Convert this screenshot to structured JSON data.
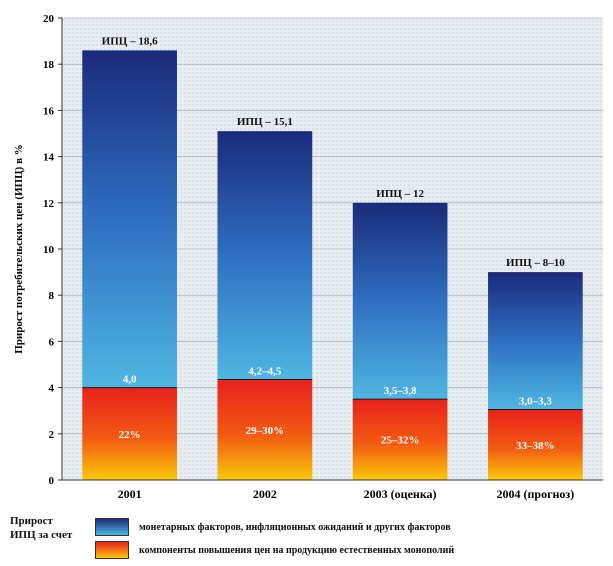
{
  "chart_data": {
    "type": "bar",
    "stacked": true,
    "ylabel": "Прирост потребительских цен (ИПЦ) в %",
    "ylim": [
      0,
      20
    ],
    "yticks": [
      0,
      2,
      4,
      6,
      8,
      10,
      12,
      14,
      16,
      18,
      20
    ],
    "categories": [
      "2001",
      "2002",
      "2003 (оценка)",
      "2004 (прогноз)"
    ],
    "series": [
      {
        "name": "компоненты повышения цен на продукцию естественных монополий",
        "values": [
          4.0,
          4.35,
          3.5,
          3.05
        ],
        "inner_labels": [
          "22%",
          "29–30%",
          "25–32%",
          "33–38%"
        ]
      },
      {
        "name": "монетарных факторов, инфляционных ожиданий и других факторов",
        "values": [
          14.6,
          10.75,
          8.5,
          5.95
        ]
      }
    ],
    "boundary_labels": [
      "4,0",
      "4,2–4,5",
      "3,5–3,8",
      "3,0–3,3"
    ],
    "total_labels": [
      "ИПЦ – 18,6",
      "ИПЦ – 15,1",
      "ИПЦ – 12",
      "ИПЦ – 8–10"
    ],
    "totals": [
      18.6,
      15.1,
      12.0,
      9.0
    ],
    "colors": {
      "top_gradient": [
        "#1b2a7a",
        "#2f6fc0",
        "#4fb6e2"
      ],
      "bottom_gradient": [
        "#e8211c",
        "#f35a12",
        "#f9c90a"
      ],
      "plot_bg": "#e8edf2"
    },
    "grid": true
  },
  "legend": {
    "title": "Прирост ИПЦ за счет"
  }
}
